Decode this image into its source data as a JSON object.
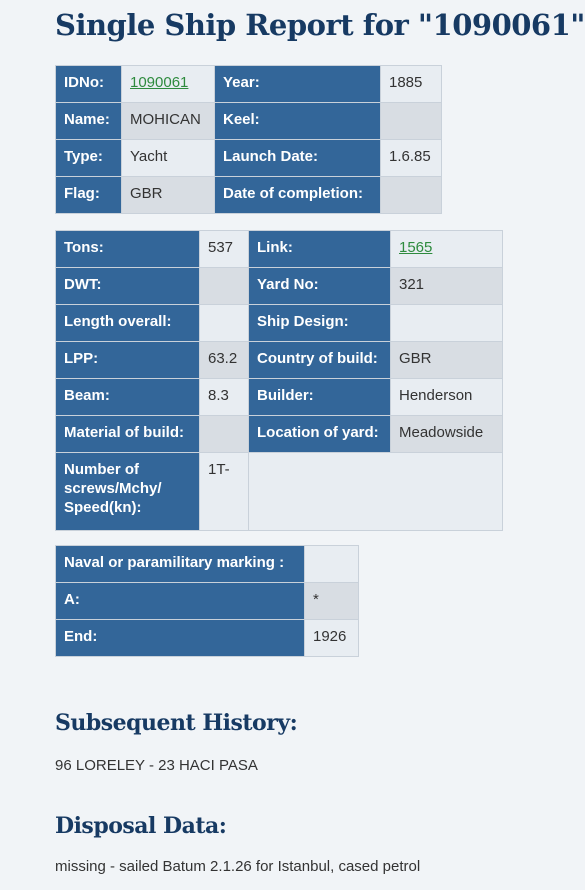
{
  "header": {
    "title": "Single Ship Report for \"1090061\""
  },
  "table1": {
    "rows": [
      [
        "IDNo:",
        "1090061",
        "Year:",
        "1885"
      ],
      [
        "Name:",
        "MOHICAN",
        "Keel:",
        null
      ],
      [
        "Type:",
        "Yacht",
        "Launch Date:",
        "1.6.85"
      ],
      [
        "Flag:",
        "GBR",
        "Date of completion:",
        null
      ]
    ]
  },
  "table2": {
    "rows": [
      [
        "Tons:",
        "537",
        "Link:",
        "1565"
      ],
      [
        "DWT:",
        null,
        "Yard No:",
        "321"
      ],
      [
        "Length overall:",
        null,
        "Ship Design:",
        null
      ],
      [
        "LPP:",
        "63.2",
        "Country of build:",
        "GBR"
      ],
      [
        "Beam:",
        "8.3",
        "Builder:",
        "Henderson"
      ],
      [
        "Material of build:",
        null,
        "Location of yard:",
        "Meadowside"
      ],
      [
        "Number of screws/Mchy/ Speed(kn):",
        "1T-"
      ]
    ]
  },
  "table3": {
    "rows": [
      [
        "Naval or paramilitary marking :",
        null
      ],
      [
        "A:",
        "*"
      ],
      [
        "End:",
        "1926"
      ]
    ]
  },
  "history": {
    "heading": "Subsequent History:",
    "text": "96 LORELEY - 23 HACI PASA"
  },
  "disposal": {
    "heading": "Disposal Data:",
    "text": "missing - sailed Batum 2.1.26 for Istanbul, cased petrol"
  }
}
